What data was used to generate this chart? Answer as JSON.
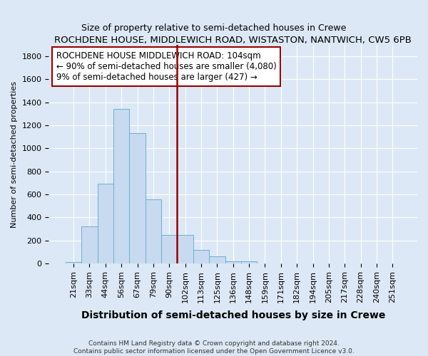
{
  "title": "ROCHDENE HOUSE, MIDDLEWICH ROAD, WISTASTON, NANTWICH, CW5 6PB",
  "subtitle": "Size of property relative to semi-detached houses in Crewe",
  "xlabel": "Distribution of semi-detached houses by size in Crewe",
  "ylabel": "Number of semi-detached properties",
  "footer1": "Contains HM Land Registry data © Crown copyright and database right 2024.",
  "footer2": "Contains public sector information licensed under the Open Government Licence v3.0.",
  "bar_labels": [
    "21sqm",
    "33sqm",
    "44sqm",
    "56sqm",
    "67sqm",
    "79sqm",
    "90sqm",
    "102sqm",
    "113sqm",
    "125sqm",
    "136sqm",
    "148sqm",
    "159sqm",
    "171sqm",
    "182sqm",
    "194sqm",
    "205sqm",
    "217sqm",
    "228sqm",
    "240sqm",
    "251sqm"
  ],
  "bar_values": [
    15,
    325,
    695,
    1345,
    1130,
    560,
    245,
    245,
    120,
    65,
    20,
    20,
    0,
    0,
    0,
    0,
    0,
    0,
    0,
    0,
    0
  ],
  "bar_color": "#c8daf0",
  "bar_edge_color": "#6aaed6",
  "vline_x_index": 7,
  "vline_color": "#990000",
  "annotation_line1": "ROCHDENE HOUSE MIDDLEWICH ROAD: 104sqm",
  "annotation_line2": "← 90% of semi-detached houses are smaller (4,080)",
  "annotation_line3": "9% of semi-detached houses are larger (427) →",
  "ylim": [
    0,
    1900
  ],
  "yticks": [
    0,
    200,
    400,
    600,
    800,
    1000,
    1200,
    1400,
    1600,
    1800
  ],
  "background_color": "#dce8f5",
  "plot_background": "#dce8f5",
  "grid_color": "#ffffff",
  "title_fontsize": 9.5,
  "subtitle_fontsize": 9,
  "annotation_fontsize": 8.5,
  "ylabel_fontsize": 8,
  "xlabel_fontsize": 10,
  "tick_fontsize": 8
}
